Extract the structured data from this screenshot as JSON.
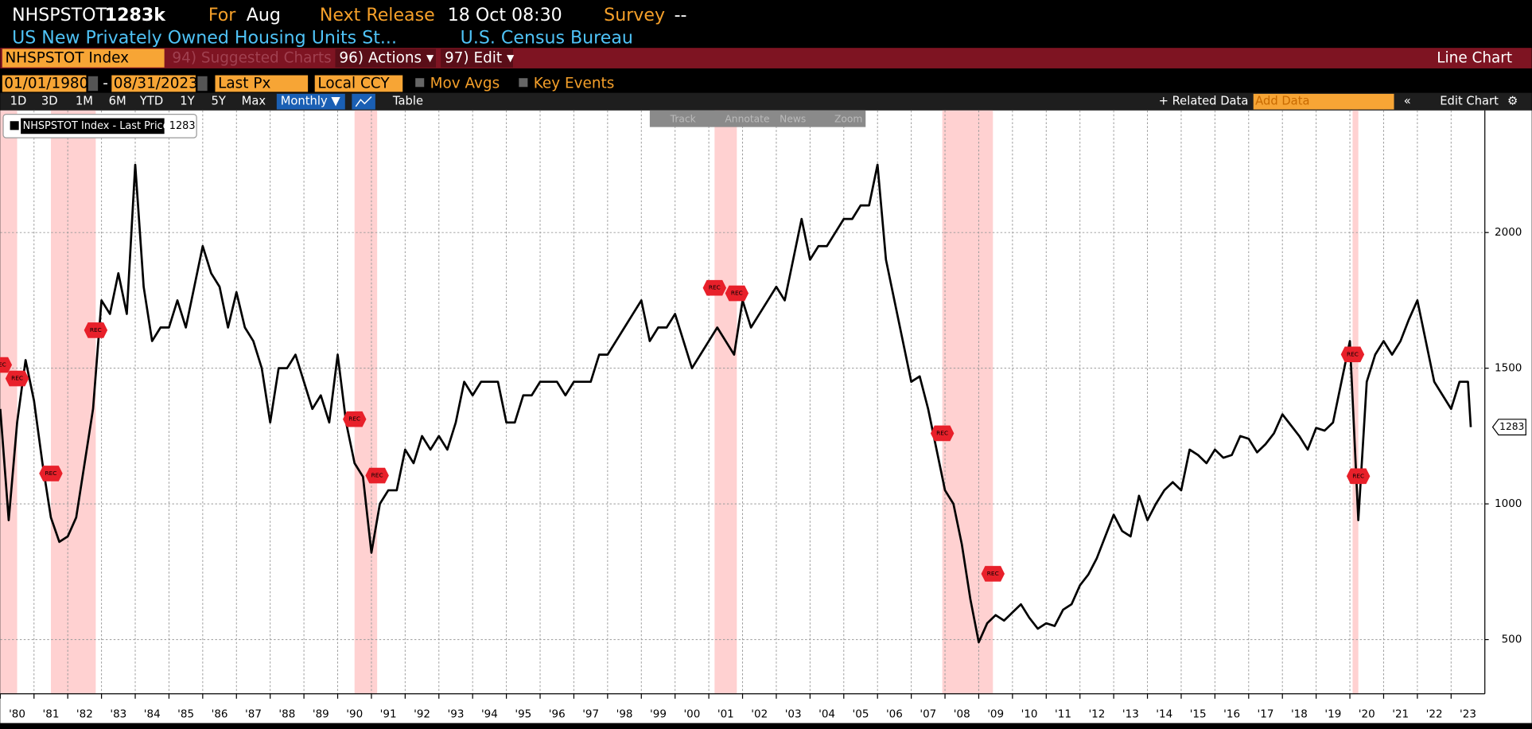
{
  "header": {
    "ticker": "NHSPSTOT",
    "last": "1283k",
    "for_label": "For",
    "for_value": "Aug",
    "release_label": "Next Release",
    "release_value": "18 Oct 08:30",
    "survey_label": "Survey",
    "survey_value": "--",
    "description": "US New Privately Owned Housing Units St...",
    "source": "U.S. Census Bureau"
  },
  "command_bar": {
    "security": "NHSPSTOT Index",
    "suggested": "94) Suggested Charts",
    "actions": "96) Actions ▾",
    "edit": "97) Edit ▾",
    "function": "Line Chart"
  },
  "settings_bar": {
    "start_date": "01/01/1980",
    "end_date": "08/31/2023",
    "field": "Last Px",
    "currency": "Local CCY",
    "mov_avgs": "Mov Avgs",
    "key_events": "Key Events"
  },
  "toolbar": {
    "ranges": [
      "1D",
      "3D",
      "1M",
      "6M",
      "YTD",
      "1Y",
      "5Y",
      "Max"
    ],
    "period": "Monthly ▼",
    "table": "Table",
    "related": "+ Related Data",
    "add_data": "Add Data",
    "edit_chart": "Edit Chart",
    "tools": [
      "Track",
      "Annotate",
      "News",
      "Zoom"
    ]
  },
  "chart_data": {
    "type": "line",
    "legend": "NHSPSTOT Index - Last Price",
    "event_label": "REC",
    "xlim": [
      1980,
      2024
    ],
    "ylim": [
      300,
      2450
    ],
    "yticks": [
      500,
      1000,
      1500,
      2000
    ],
    "grid": true,
    "xticks": [
      {
        "value": 1980,
        "label": "'80"
      },
      {
        "value": 1981,
        "label": "'81"
      },
      {
        "value": 1982,
        "label": "'82"
      },
      {
        "value": 1983,
        "label": "'83"
      },
      {
        "value": 1984,
        "label": "'84"
      },
      {
        "value": 1985,
        "label": "'85"
      },
      {
        "value": 1986,
        "label": "'86"
      },
      {
        "value": 1987,
        "label": "'87"
      },
      {
        "value": 1988,
        "label": "'88"
      },
      {
        "value": 1989,
        "label": "'89"
      },
      {
        "value": 1990,
        "label": "'90"
      },
      {
        "value": 1991,
        "label": "'91"
      },
      {
        "value": 1992,
        "label": "'92"
      },
      {
        "value": 1993,
        "label": "'93"
      },
      {
        "value": 1994,
        "label": "'94"
      },
      {
        "value": 1995,
        "label": "'95"
      },
      {
        "value": 1996,
        "label": "'96"
      },
      {
        "value": 1997,
        "label": "'97"
      },
      {
        "value": 1998,
        "label": "'98"
      },
      {
        "value": 1999,
        "label": "'99"
      },
      {
        "value": 2000,
        "label": "'00"
      },
      {
        "value": 2001,
        "label": "'01"
      },
      {
        "value": 2002,
        "label": "'02"
      },
      {
        "value": 2003,
        "label": "'03"
      },
      {
        "value": 2004,
        "label": "'04"
      },
      {
        "value": 2005,
        "label": "'05"
      },
      {
        "value": 2006,
        "label": "'06"
      },
      {
        "value": 2007,
        "label": "'07"
      },
      {
        "value": 2008,
        "label": "'08"
      },
      {
        "value": 2009,
        "label": "'09"
      },
      {
        "value": 2010,
        "label": "'10"
      },
      {
        "value": 2011,
        "label": "'11"
      },
      {
        "value": 2012,
        "label": "'12"
      },
      {
        "value": 2013,
        "label": "'13"
      },
      {
        "value": 2014,
        "label": "'14"
      },
      {
        "value": 2015,
        "label": "'15"
      },
      {
        "value": 2016,
        "label": "'16"
      },
      {
        "value": 2017,
        "label": "'17"
      },
      {
        "value": 2018,
        "label": "'18"
      },
      {
        "value": 2019,
        "label": "'19"
      },
      {
        "value": 2020,
        "label": "'20"
      },
      {
        "value": 2021,
        "label": "'21"
      },
      {
        "value": 2022,
        "label": "'22"
      },
      {
        "value": 2023,
        "label": "'23"
      }
    ],
    "recessions": [
      [
        1980.0,
        1980.5
      ],
      [
        1981.5,
        1982.83
      ],
      [
        1990.5,
        1991.17
      ],
      [
        2001.17,
        2001.83
      ],
      [
        2007.92,
        2009.42
      ],
      [
        2020.08,
        2020.25
      ]
    ],
    "series": [
      {
        "name": "NHSPSTOT Index",
        "color": "#000000",
        "x": [
          1980,
          1980.25,
          1980.5,
          1980.75,
          1981,
          1981.25,
          1981.5,
          1981.75,
          1982,
          1982.25,
          1982.5,
          1982.75,
          1983,
          1983.25,
          1983.5,
          1983.75,
          1984,
          1984.25,
          1984.5,
          1984.75,
          1985,
          1985.25,
          1985.5,
          1985.75,
          1986,
          1986.25,
          1986.5,
          1986.75,
          1987,
          1987.25,
          1987.5,
          1987.75,
          1988,
          1988.25,
          1988.5,
          1988.75,
          1989,
          1989.25,
          1989.5,
          1989.75,
          1990,
          1990.25,
          1990.5,
          1990.75,
          1991,
          1991.25,
          1991.5,
          1991.75,
          1992,
          1992.25,
          1992.5,
          1992.75,
          1993,
          1993.25,
          1993.5,
          1993.75,
          1994,
          1994.25,
          1994.5,
          1994.75,
          1995,
          1995.25,
          1995.5,
          1995.75,
          1996,
          1996.25,
          1996.5,
          1996.75,
          1997,
          1997.25,
          1997.5,
          1997.75,
          1998,
          1998.25,
          1998.5,
          1998.75,
          1999,
          1999.25,
          1999.5,
          1999.75,
          2000,
          2000.25,
          2000.5,
          2000.75,
          2001,
          2001.25,
          2001.5,
          2001.75,
          2002,
          2002.25,
          2002.5,
          2002.75,
          2003,
          2003.25,
          2003.5,
          2003.75,
          2004,
          2004.25,
          2004.5,
          2004.75,
          2005,
          2005.25,
          2005.5,
          2005.75,
          2006,
          2006.25,
          2006.5,
          2006.75,
          2007,
          2007.25,
          2007.5,
          2007.75,
          2008,
          2008.25,
          2008.5,
          2008.75,
          2009,
          2009.25,
          2009.5,
          2009.75,
          2010,
          2010.25,
          2010.5,
          2010.75,
          2011,
          2011.25,
          2011.5,
          2011.75,
          2012,
          2012.25,
          2012.5,
          2012.75,
          2013,
          2013.25,
          2013.5,
          2013.75,
          2014,
          2014.25,
          2014.5,
          2014.75,
          2015,
          2015.25,
          2015.5,
          2015.75,
          2016,
          2016.25,
          2016.5,
          2016.75,
          2017,
          2017.25,
          2017.5,
          2017.75,
          2018,
          2018.25,
          2018.5,
          2018.75,
          2019,
          2019.25,
          2019.5,
          2019.75,
          2020,
          2020.25,
          2020.5,
          2020.75,
          2021,
          2021.25,
          2021.5,
          2021.75,
          2022,
          2022.25,
          2022.5,
          2022.75,
          2023,
          2023.25,
          2023.5,
          2023.583
        ],
        "values": [
          1350,
          940,
          1300,
          1530,
          1380,
          1150,
          950,
          860,
          880,
          950,
          1150,
          1350,
          1750,
          1700,
          1850,
          1700,
          2250,
          1800,
          1600,
          1650,
          1650,
          1750,
          1650,
          1800,
          1950,
          1850,
          1800,
          1650,
          1780,
          1650,
          1600,
          1500,
          1300,
          1500,
          1500,
          1550,
          1450,
          1350,
          1400,
          1300,
          1550,
          1300,
          1150,
          1100,
          820,
          1000,
          1050,
          1050,
          1200,
          1150,
          1250,
          1200,
          1250,
          1200,
          1300,
          1450,
          1400,
          1450,
          1450,
          1450,
          1300,
          1300,
          1400,
          1400,
          1450,
          1450,
          1450,
          1400,
          1450,
          1450,
          1450,
          1550,
          1550,
          1600,
          1650,
          1700,
          1750,
          1600,
          1650,
          1650,
          1700,
          1600,
          1500,
          1550,
          1600,
          1650,
          1600,
          1550,
          1750,
          1650,
          1700,
          1750,
          1800,
          1750,
          1900,
          2050,
          1900,
          1950,
          1950,
          2000,
          2050,
          2050,
          2100,
          2100,
          2250,
          1900,
          1750,
          1600,
          1450,
          1470,
          1350,
          1200,
          1050,
          1000,
          850,
          650,
          490,
          560,
          590,
          570,
          600,
          630,
          580,
          540,
          560,
          550,
          610,
          630,
          700,
          740,
          800,
          880,
          960,
          900,
          880,
          1030,
          940,
          1000,
          1050,
          1080,
          1050,
          1200,
          1180,
          1150,
          1200,
          1170,
          1180,
          1250,
          1240,
          1190,
          1220,
          1260,
          1330,
          1290,
          1250,
          1200,
          1280,
          1270,
          1300,
          1450,
          1600,
          940,
          1450,
          1550,
          1600,
          1550,
          1600,
          1680,
          1750,
          1600,
          1450,
          1400,
          1350,
          1450,
          1450,
          1283
        ]
      }
    ]
  }
}
